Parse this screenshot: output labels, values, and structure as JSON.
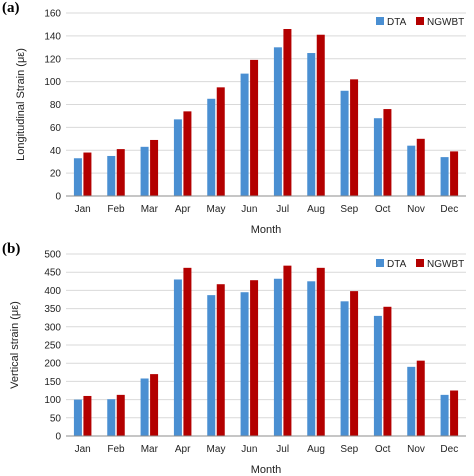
{
  "colors": {
    "dta": "#4a8fd2",
    "ngwbt": "#b30000",
    "grid": "#d9d9d9",
    "axis": "#8c8c8c"
  },
  "chart_data": [
    {
      "panel_label": "(a)",
      "type": "bar",
      "categories": [
        "Jan",
        "Feb",
        "Mar",
        "Apr",
        "May",
        "Jun",
        "Jul",
        "Aug",
        "Sep",
        "Oct",
        "Nov",
        "Dec"
      ],
      "series": [
        {
          "name": "DTA",
          "values": [
            33,
            35,
            43,
            67,
            85,
            107,
            130,
            125,
            92,
            68,
            44,
            34
          ]
        },
        {
          "name": "NGWBT",
          "values": [
            38,
            41,
            49,
            74,
            95,
            119,
            146,
            141,
            102,
            76,
            50,
            39
          ]
        }
      ],
      "xlabel": "Month",
      "ylabel": "Longitudinal Strain (με)",
      "ylim": [
        0,
        160
      ],
      "yticks": [
        0,
        20,
        40,
        60,
        80,
        100,
        120,
        140,
        160
      ],
      "grid": true,
      "legend": "top-right"
    },
    {
      "panel_label": "(b)",
      "type": "bar",
      "categories": [
        "Jan",
        "Feb",
        "Mar",
        "Apr",
        "May",
        "Jun",
        "Jul",
        "Aug",
        "Sep",
        "Oct",
        "Nov",
        "Dec"
      ],
      "series": [
        {
          "name": "DTA",
          "values": [
            100,
            101,
            158,
            430,
            387,
            395,
            432,
            425,
            370,
            330,
            190,
            113
          ]
        },
        {
          "name": "NGWBT",
          "values": [
            110,
            113,
            170,
            462,
            417,
            428,
            468,
            462,
            398,
            355,
            207,
            125
          ]
        }
      ],
      "xlabel": "Month",
      "ylabel": "Vertical strain (με)",
      "ylim": [
        0,
        500
      ],
      "yticks": [
        0,
        50,
        100,
        150,
        200,
        250,
        300,
        350,
        400,
        450,
        500
      ],
      "grid": true,
      "legend": "top-right"
    }
  ]
}
